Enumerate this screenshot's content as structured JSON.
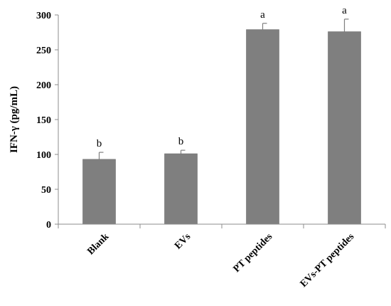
{
  "chart_data": {
    "type": "bar",
    "categories": [
      "Blank",
      "EVs",
      "PT peptides",
      "EVs-PT peptides"
    ],
    "values": [
      93,
      101,
      279,
      276
    ],
    "errors": [
      10,
      5,
      9,
      18
    ],
    "significance": [
      "b",
      "b",
      "a",
      "a"
    ],
    "ylabel": "IFN-γ (pg/mL)",
    "ylim": [
      0,
      300
    ],
    "yticks": [
      0,
      50,
      100,
      150,
      200,
      250,
      300
    ],
    "bar_color": "#7f7f7f",
    "grid": false
  }
}
